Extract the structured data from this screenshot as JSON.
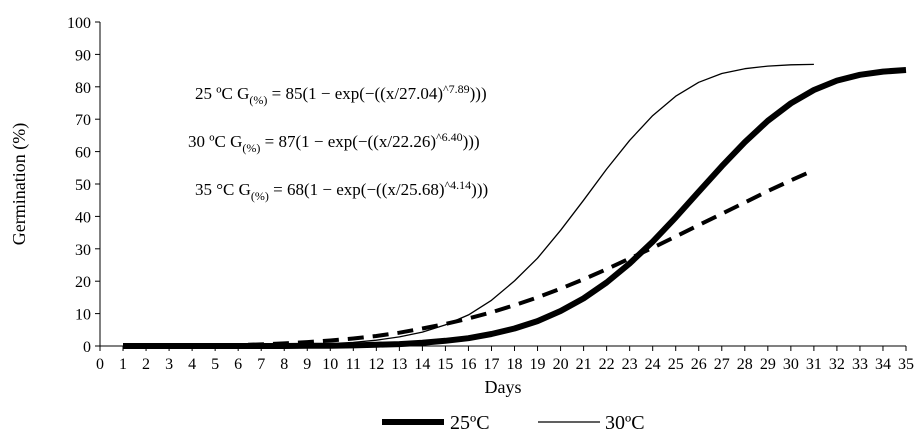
{
  "chart_data": {
    "type": "line",
    "xlabel": "Days",
    "ylabel": "Germination (%)",
    "xlim": [
      0,
      35
    ],
    "ylim": [
      0,
      100
    ],
    "xticks": [
      0,
      1,
      2,
      3,
      4,
      5,
      6,
      7,
      8,
      9,
      10,
      11,
      12,
      13,
      14,
      15,
      16,
      17,
      18,
      19,
      20,
      21,
      22,
      23,
      24,
      25,
      26,
      27,
      28,
      29,
      30,
      31,
      32,
      33,
      34,
      35
    ],
    "yticks": [
      0,
      10,
      20,
      30,
      40,
      50,
      60,
      70,
      80,
      90,
      100
    ],
    "grid": false,
    "legend_position": "bottom",
    "series": [
      {
        "name": "25ºC",
        "style": "thick-solid",
        "color": "#000000",
        "x": [
          1,
          2,
          3,
          4,
          5,
          6,
          7,
          8,
          9,
          10,
          11,
          12,
          13,
          14,
          15,
          16,
          17,
          18,
          19,
          20,
          21,
          22,
          23,
          24,
          25,
          26,
          27,
          28,
          29,
          30,
          31,
          32,
          33,
          34,
          35
        ],
        "y": [
          0,
          0,
          0,
          0,
          0,
          0,
          0,
          0,
          0.1,
          0.1,
          0.2,
          0.4,
          0.6,
          1.0,
          1.6,
          2.4,
          3.7,
          5.4,
          7.7,
          10.8,
          14.7,
          19.6,
          25.5,
          32.2,
          39.7,
          47.6,
          55.5,
          62.9,
          69.5,
          74.9,
          79.0,
          81.9,
          83.7,
          84.7,
          85.2
        ]
      },
      {
        "name": "30ºC",
        "style": "thin-solid",
        "color": "#000000",
        "x": [
          1,
          2,
          3,
          4,
          5,
          6,
          7,
          8,
          9,
          10,
          11,
          12,
          13,
          14,
          15,
          16,
          17,
          18,
          19,
          20,
          21,
          22,
          23,
          24,
          25,
          26,
          27,
          28,
          29,
          30,
          31
        ],
        "y": [
          0,
          0,
          0,
          0,
          0,
          0,
          0.1,
          0.2,
          0.4,
          0.7,
          1.1,
          1.8,
          2.8,
          4.3,
          6.5,
          9.6,
          14.1,
          20.1,
          27.1,
          35.7,
          45.0,
          54.6,
          63.5,
          71.1,
          77.1,
          81.4,
          84.1,
          85.6,
          86.4,
          86.8,
          86.9
        ]
      },
      {
        "name": "35ºC",
        "style": "thick-dashed",
        "color": "#000000",
        "x": [
          1,
          2,
          3,
          4,
          5,
          6,
          7,
          8,
          9,
          10,
          11,
          12,
          13,
          14,
          15,
          16,
          17,
          18,
          19,
          20,
          21,
          22,
          23,
          24,
          25,
          26,
          27,
          28,
          29,
          30,
          31
        ],
        "y": [
          0,
          0,
          0,
          0.1,
          0.2,
          0.3,
          0.5,
          0.8,
          1.2,
          1.7,
          2.3,
          3.1,
          4.1,
          5.4,
          6.8,
          8.5,
          10.4,
          12.6,
          15.0,
          17.7,
          20.6,
          23.7,
          27.0,
          30.3,
          33.8,
          37.3,
          40.8,
          44.3,
          47.8,
          51.1,
          54.3
        ]
      }
    ],
    "annotations": [
      {
        "prefix": "25 ºC G",
        "sub": "(%)",
        "body": " = 85(1 − exp(−((x/27.04)",
        "sup": "^7.89",
        "tail": ")))"
      },
      {
        "prefix": "30 ºC G",
        "sub": "(%)",
        "body": " = 87(1 − exp(−((x/22.26)",
        "sup": "^6.40",
        "tail": ")))"
      },
      {
        "prefix": "35 °C G",
        "sub": "(%)",
        "body": " = 68(1 − exp(−((x/25.68)",
        "sup": "^4.14",
        "tail": ")))"
      }
    ],
    "legend": [
      {
        "label": "25ºC",
        "style": "thick-solid"
      },
      {
        "label": "30ºC",
        "style": "thin-solid"
      }
    ]
  }
}
